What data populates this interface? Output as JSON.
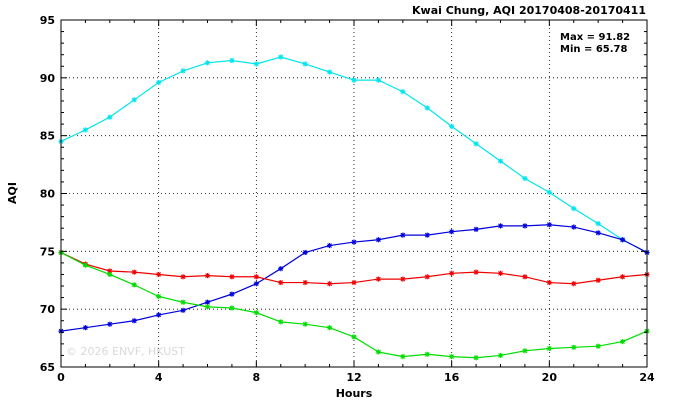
{
  "chart_data": {
    "type": "line",
    "title": "Kwai Chung, AQI 20170408-20170411",
    "xlabel": "Hours",
    "ylabel": "AQI",
    "xlim": [
      0,
      24
    ],
    "ylim": [
      65,
      95
    ],
    "x_ticks": [
      0,
      4,
      8,
      12,
      16,
      20,
      24
    ],
    "y_ticks": [
      65,
      70,
      75,
      80,
      85,
      90,
      95
    ],
    "grid": "dotted at major ticks",
    "legend": "none",
    "annotations": {
      "max": "Max = 91.82",
      "min": "Min = 65.78"
    },
    "watermark": "© 2026  ENVF, HKUST",
    "x": [
      0,
      1,
      2,
      3,
      4,
      5,
      6,
      7,
      8,
      9,
      10,
      11,
      12,
      13,
      14,
      15,
      16,
      17,
      18,
      19,
      20,
      21,
      22,
      23,
      24
    ],
    "series": [
      {
        "color": "#00e5ee",
        "values": [
          84.5,
          85.5,
          86.6,
          88.1,
          89.6,
          90.6,
          91.3,
          91.5,
          91.2,
          91.8,
          91.2,
          90.5,
          89.8,
          89.8,
          88.8,
          87.4,
          85.8,
          84.3,
          82.8,
          81.3,
          80.1,
          78.7,
          77.4,
          76.0,
          74.9
        ]
      },
      {
        "color": "#0000dd",
        "values": [
          68.1,
          68.4,
          68.7,
          69.0,
          69.5,
          69.9,
          70.6,
          71.3,
          72.2,
          73.5,
          74.9,
          75.5,
          75.8,
          76.0,
          76.4,
          76.4,
          76.7,
          76.9,
          77.2,
          77.2,
          77.3,
          77.1,
          76.6,
          76.0,
          74.9
        ]
      },
      {
        "color": "#ee0000",
        "values": [
          74.9,
          73.9,
          73.3,
          73.2,
          73.0,
          72.8,
          72.9,
          72.8,
          72.8,
          72.3,
          72.3,
          72.2,
          72.3,
          72.6,
          72.6,
          72.8,
          73.1,
          73.2,
          73.1,
          72.8,
          72.3,
          72.2,
          72.5,
          72.8,
          73.0
        ]
      },
      {
        "color": "#00dd00",
        "values": [
          74.9,
          73.8,
          73.0,
          72.1,
          71.1,
          70.6,
          70.2,
          70.1,
          69.7,
          68.9,
          68.7,
          68.4,
          67.6,
          66.3,
          65.9,
          66.1,
          65.9,
          65.8,
          66.0,
          66.4,
          66.6,
          66.7,
          66.8,
          67.2,
          68.1
        ]
      }
    ]
  }
}
